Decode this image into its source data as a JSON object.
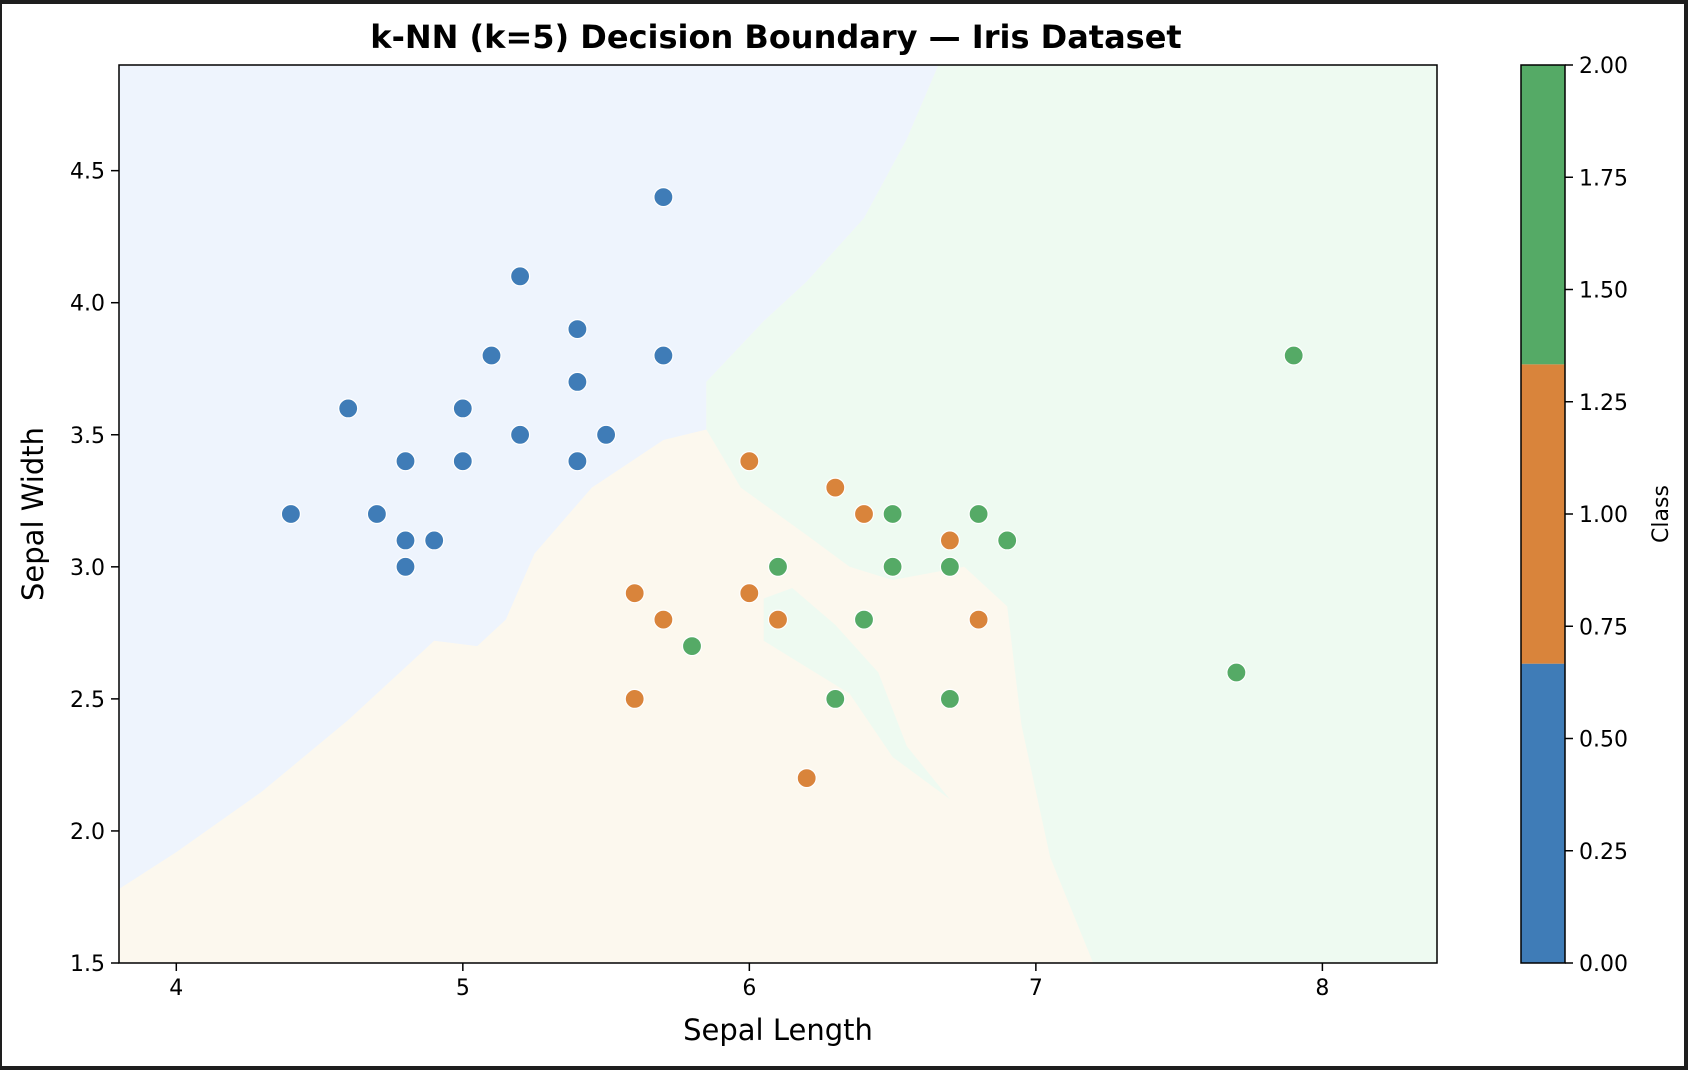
{
  "chart_data": {
    "type": "scatter",
    "title": "k-NN (k=5) Decision Boundary — Iris Dataset",
    "xlabel": "Sepal Length",
    "ylabel": "Sepal Width",
    "xlim": [
      3.8,
      8.4
    ],
    "ylim": [
      1.5,
      4.9
    ],
    "xticks": [
      4,
      5,
      6,
      7,
      8
    ],
    "yticks": [
      1.5,
      2.0,
      2.5,
      3.0,
      3.5,
      4.0,
      4.5
    ],
    "ytick_labels": [
      "1.5",
      "2.0",
      "2.5",
      "3.0",
      "3.5",
      "4.0",
      "4.5"
    ],
    "colors": {
      "class0": "#3f7cb7",
      "class1": "#d9843b",
      "class2": "#55aa66",
      "region0": "#eef4fd",
      "region1": "#fcf8ee",
      "region2": "#eefaf1"
    },
    "regions": {
      "class0": [
        [
          3.8,
          1.78
        ],
        [
          4.0,
          1.92
        ],
        [
          4.3,
          2.15
        ],
        [
          4.6,
          2.42
        ],
        [
          4.8,
          2.62
        ],
        [
          4.9,
          2.72
        ],
        [
          5.05,
          2.7
        ],
        [
          5.15,
          2.8
        ],
        [
          5.25,
          3.05
        ],
        [
          5.45,
          3.3
        ],
        [
          5.7,
          3.48
        ],
        [
          5.85,
          3.52
        ],
        [
          5.85,
          3.7
        ],
        [
          6.05,
          3.93
        ],
        [
          6.2,
          4.08
        ],
        [
          6.4,
          4.32
        ],
        [
          6.55,
          4.62
        ],
        [
          6.66,
          4.9
        ],
        [
          3.8,
          4.9
        ]
      ],
      "class2": [
        [
          6.66,
          4.9
        ],
        [
          6.55,
          4.62
        ],
        [
          6.4,
          4.32
        ],
        [
          6.2,
          4.08
        ],
        [
          6.05,
          3.93
        ],
        [
          5.85,
          3.7
        ],
        [
          5.85,
          3.52
        ],
        [
          5.97,
          3.3
        ],
        [
          6.2,
          3.12
        ],
        [
          6.35,
          3.0
        ],
        [
          6.5,
          2.95
        ],
        [
          6.75,
          3.0
        ],
        [
          6.9,
          2.85
        ],
        [
          6.95,
          2.4
        ],
        [
          7.05,
          1.9
        ],
        [
          7.2,
          1.5
        ],
        [
          8.4,
          1.5
        ],
        [
          8.4,
          4.9
        ]
      ],
      "class2_island": [
        [
          6.05,
          2.72
        ],
        [
          6.2,
          2.62
        ],
        [
          6.35,
          2.52
        ],
        [
          6.5,
          2.28
        ],
        [
          6.7,
          2.12
        ],
        [
          6.55,
          2.32
        ],
        [
          6.45,
          2.6
        ],
        [
          6.3,
          2.78
        ],
        [
          6.15,
          2.92
        ],
        [
          6.05,
          2.88
        ]
      ]
    },
    "series": [
      {
        "class": 0,
        "x": [
          5.7,
          5.2,
          5.4,
          5.1,
          5.7,
          5.4,
          4.6,
          5.0,
          5.2,
          5.5,
          4.8,
          5.0,
          5.4,
          4.4,
          4.7,
          4.8,
          4.9,
          4.8
        ],
        "y": [
          4.4,
          4.1,
          3.9,
          3.8,
          3.8,
          3.7,
          3.6,
          3.6,
          3.5,
          3.5,
          3.4,
          3.4,
          3.4,
          3.2,
          3.2,
          3.1,
          3.1,
          3.0
        ]
      },
      {
        "class": 1,
        "x": [
          6.0,
          6.3,
          6.4,
          6.7,
          5.6,
          6.0,
          5.7,
          6.1,
          6.8,
          5.6,
          6.2
        ],
        "y": [
          3.4,
          3.3,
          3.2,
          3.1,
          2.9,
          2.9,
          2.8,
          2.8,
          2.8,
          2.5,
          2.2
        ]
      },
      {
        "class": 2,
        "x": [
          7.9,
          6.5,
          6.8,
          6.9,
          6.1,
          6.5,
          6.7,
          6.4,
          5.8,
          7.7,
          6.3,
          6.7
        ],
        "y": [
          3.8,
          3.2,
          3.2,
          3.1,
          3.0,
          3.0,
          3.0,
          2.8,
          2.7,
          2.6,
          2.5,
          2.5
        ]
      }
    ],
    "colorbar": {
      "label": "Class",
      "range": [
        0,
        2
      ],
      "ticks": [
        "0.00",
        "0.25",
        "0.50",
        "0.75",
        "1.00",
        "1.25",
        "1.50",
        "1.75",
        "2.00"
      ]
    }
  }
}
